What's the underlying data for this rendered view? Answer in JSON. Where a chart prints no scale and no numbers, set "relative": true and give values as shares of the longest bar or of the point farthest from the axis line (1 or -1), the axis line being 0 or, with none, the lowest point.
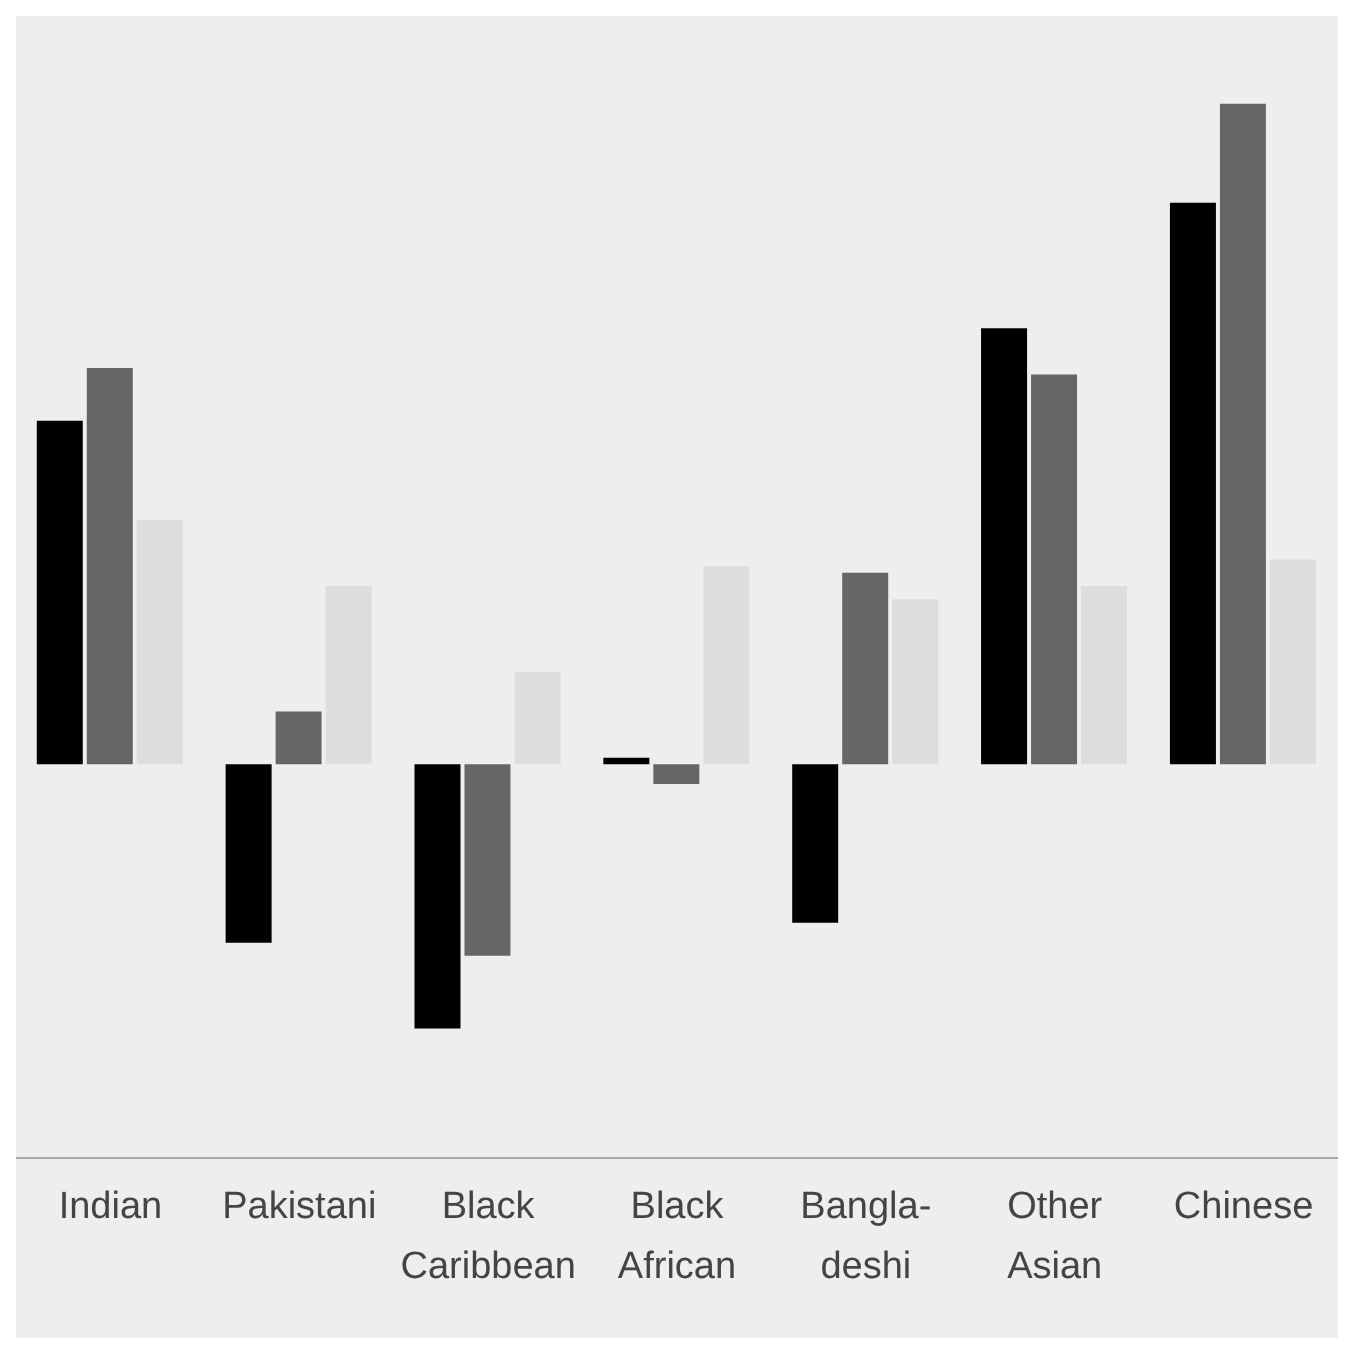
{
  "chart_data": {
    "type": "bar",
    "relative": true,
    "categories": [
      "Indian",
      "Pakistani",
      "Black Caribbean",
      "Black African",
      "Bangla-deshi",
      "Other Asian",
      "Chinese"
    ],
    "series": [
      {
        "color": "#000000",
        "values": [
          0.52,
          -0.27,
          -0.4,
          0.01,
          -0.24,
          0.66,
          0.85
        ]
      },
      {
        "color": "#666666",
        "values": [
          0.6,
          0.08,
          -0.29,
          -0.03,
          0.29,
          0.59,
          1
        ]
      },
      {
        "color": "#dddddd",
        "values": [
          0.37,
          0.27,
          0.14,
          0.3,
          0.25,
          0.27,
          0.31
        ]
      }
    ],
    "grid": false,
    "legend": false
  }
}
